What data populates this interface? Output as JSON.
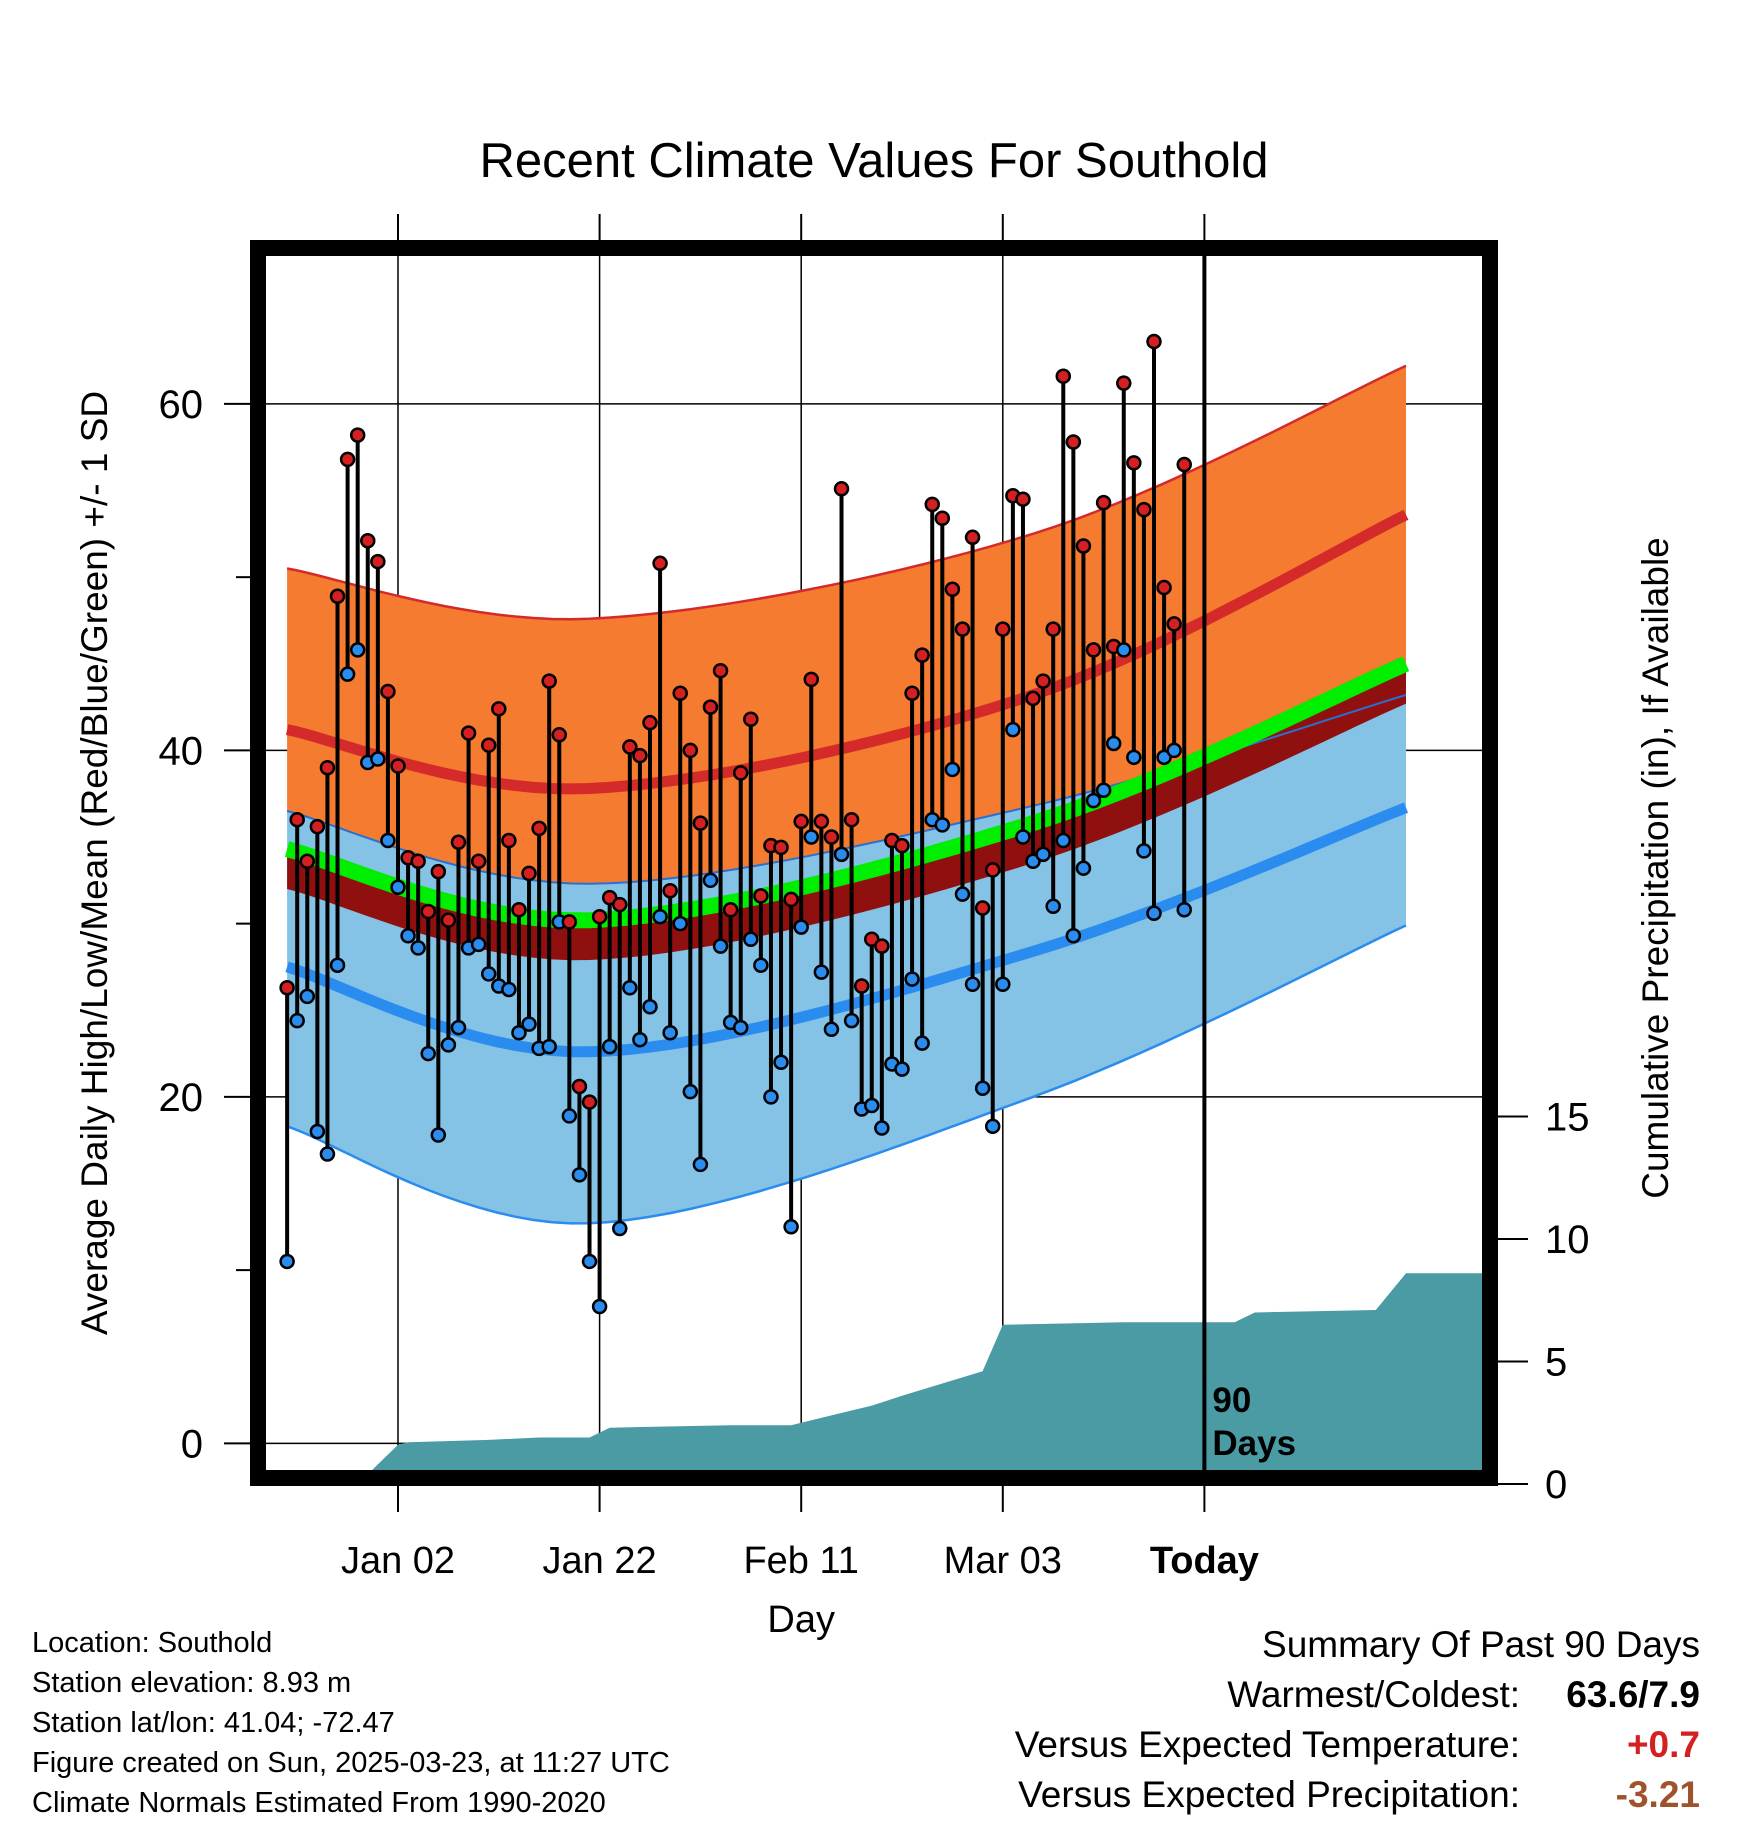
{
  "title": "Recent Climate Values For Southold",
  "chart_data": {
    "type": "line",
    "title": "Recent Climate Values For Southold",
    "xlabel": "Day",
    "ylabel": "Average Daily High/Low/Mean (Red/Blue/Green) +/- 1 SD",
    "y2label": "Cumulative Precipitation (in), If Available",
    "ylim": [
      -2,
      69
    ],
    "y2lim": [
      0,
      60.7
    ],
    "x_tick_labels": [
      "Jan 02",
      "Jan 22",
      "Feb 11",
      "Mar 03",
      "Today"
    ],
    "y_ticks": [
      0,
      20,
      40,
      60
    ],
    "y2_ticks": [
      0,
      5,
      10,
      15
    ],
    "marker_text": "90 Days",
    "normals": {
      "high_mean": [
        [
          -11,
          41.2
        ],
        [
          19,
          37.8
        ],
        [
          63,
          43.2
        ],
        [
          100,
          53.6
        ]
      ],
      "high_sd_upper": [
        [
          -11,
          50.5
        ],
        [
          19,
          47.6
        ],
        [
          63,
          52.5
        ],
        [
          100,
          62.2
        ]
      ],
      "low_mean": [
        [
          -11,
          27.5
        ],
        [
          19,
          22.6
        ],
        [
          63,
          28.4
        ],
        [
          100,
          36.7
        ]
      ],
      "low_sd_lower": [
        [
          -11,
          18.3
        ],
        [
          19,
          12.7
        ],
        [
          63,
          20.0
        ],
        [
          100,
          29.9
        ]
      ],
      "mean": [
        [
          -11,
          34.3
        ],
        [
          19,
          30.2
        ],
        [
          63,
          35.8
        ],
        [
          100,
          45.0
        ]
      ],
      "low_sd_upper": [
        [
          -11,
          36.5
        ],
        [
          19,
          32.3
        ],
        [
          63,
          36.8
        ],
        [
          100,
          43.2
        ]
      ]
    },
    "series": [
      {
        "name": "High",
        "values": [
          26.3,
          36.0,
          33.6,
          35.6,
          39.0,
          48.9,
          56.8,
          58.2,
          52.1,
          50.9,
          43.4,
          39.1,
          33.8,
          33.6,
          30.7,
          33.0,
          30.2,
          34.7,
          41.0,
          33.6,
          40.3,
          42.4,
          34.8,
          30.8,
          32.9,
          35.5,
          44.0,
          40.9,
          30.1,
          20.6,
          19.7,
          30.4,
          31.5,
          31.1,
          40.2,
          39.7,
          41.6,
          50.8,
          31.9,
          43.3,
          40.0,
          35.8,
          42.5,
          44.6,
          30.8,
          38.7,
          41.8,
          31.6,
          34.5,
          34.4,
          31.4,
          35.9,
          44.1,
          35.9,
          35.0,
          55.1,
          36.0,
          26.4,
          29.1,
          28.7,
          34.8,
          34.5,
          43.3,
          45.5,
          54.2,
          53.4,
          49.3,
          47.0,
          52.3,
          30.9,
          33.1,
          47.0,
          54.7,
          54.5,
          43.0,
          44.0,
          47.0,
          61.6,
          57.8,
          51.8,
          45.8,
          54.3,
          46.0,
          61.2,
          56.6,
          53.9,
          63.6,
          49.4,
          47.3,
          56.5
        ]
      },
      {
        "name": "Low",
        "values": [
          10.5,
          24.4,
          25.8,
          18.0,
          16.7,
          27.6,
          44.4,
          45.8,
          39.3,
          39.5,
          34.8,
          32.1,
          29.3,
          28.6,
          22.5,
          17.8,
          23.0,
          24.0,
          28.6,
          28.8,
          27.1,
          26.4,
          26.2,
          23.7,
          24.2,
          22.8,
          22.9,
          30.1,
          18.9,
          15.5,
          10.5,
          7.9,
          22.9,
          12.4,
          26.3,
          23.3,
          25.2,
          30.4,
          23.7,
          30.0,
          20.3,
          16.1,
          32.5,
          28.7,
          24.3,
          24.0,
          29.1,
          27.6,
          20.0,
          22.0,
          12.5,
          29.8,
          35.0,
          27.2,
          23.9,
          34.0,
          24.4,
          19.3,
          19.5,
          18.2,
          21.9,
          21.6,
          26.8,
          23.1,
          36.0,
          35.7,
          38.9,
          31.7,
          26.5,
          20.5,
          18.3,
          26.5,
          41.2,
          35.0,
          33.6,
          34.0,
          31.0,
          34.8,
          29.3,
          33.2,
          37.1,
          37.7,
          40.4,
          45.8,
          39.6,
          34.2,
          30.6,
          39.6,
          40.0,
          30.8
        ]
      },
      {
        "name": "Cumulative Precipitation",
        "values": [
          [
            -12,
            0
          ],
          [
            -4,
            0
          ],
          [
            -3,
            0.4
          ],
          [
            -2,
            0.8
          ],
          [
            -1,
            1.2
          ],
          [
            0,
            1.6
          ],
          [
            1,
            1.7
          ],
          [
            9,
            1.8
          ],
          [
            14,
            1.9
          ],
          [
            19,
            1.9
          ],
          [
            21,
            2.3
          ],
          [
            33,
            2.4
          ],
          [
            39,
            2.4
          ],
          [
            43,
            2.8
          ],
          [
            47,
            3.2
          ],
          [
            50,
            3.6
          ],
          [
            54,
            4.1
          ],
          [
            58,
            4.6
          ],
          [
            60,
            6.5
          ],
          [
            72,
            6.6
          ],
          [
            83,
            6.6
          ],
          [
            85,
            7.0
          ],
          [
            97,
            7.1
          ],
          [
            100,
            8.6
          ],
          [
            110,
            8.6
          ]
        ]
      }
    ]
  },
  "footer": {
    "location": "Location: Southold",
    "elevation": "Station elevation: 8.93 m",
    "latlon": "Station lat/lon: 41.04; -72.47",
    "created": "Figure created on Sun, 2025-03-23, at 11:27 UTC",
    "normals": "Climate Normals Estimated From 1990-2020"
  },
  "summary": {
    "heading": "Summary Of Past 90 Days",
    "warmest_label": "Warmest/Coldest:",
    "warmest_value": "63.6/7.9",
    "temp_label": "Versus Expected Temperature:",
    "temp_value": "+0.7",
    "temp_color": "#d42020",
    "precip_label": "Versus Expected Precipitation:",
    "precip_value": "-3.21",
    "precip_color": "#a0522d"
  },
  "colors": {
    "high_band": "#f47b30",
    "high_line": "#d42a2a",
    "low_band": "#84c2e6",
    "low_line": "#2b8cf0",
    "mean_band": "#00ee00",
    "overlap": "#901010",
    "precip": "#4a9ba4",
    "high_dot": "#d42020",
    "low_dot": "#2b8cf0"
  }
}
